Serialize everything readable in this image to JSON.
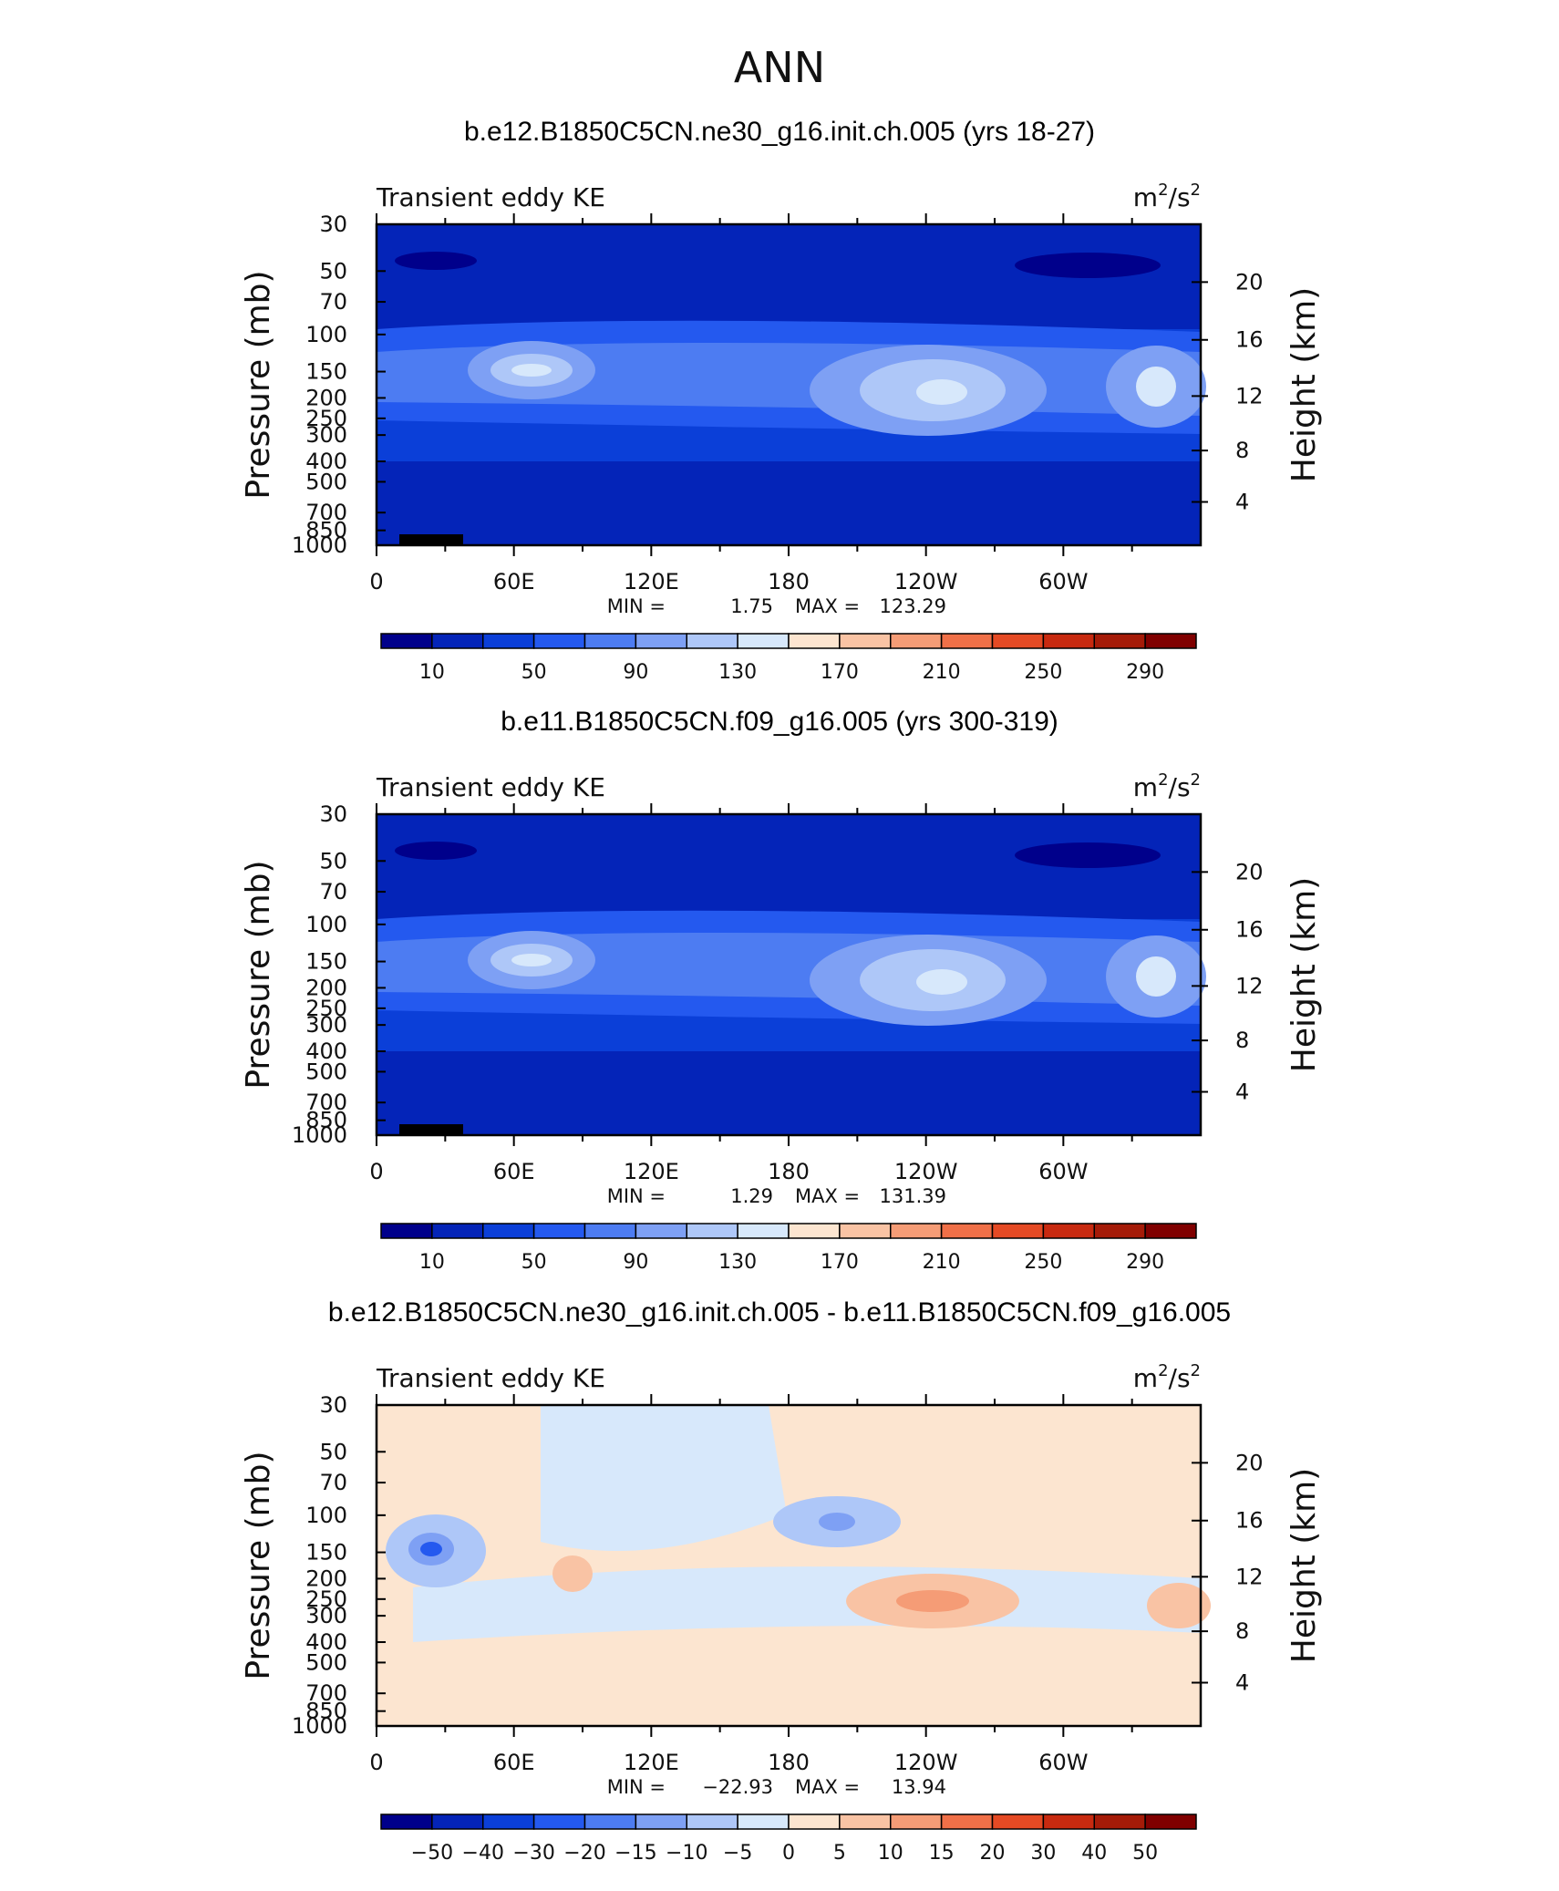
{
  "page_title": "ANN",
  "panels": [
    {
      "title": "b.e12.B1850C5CN.ne30_g16.init.ch.005 (yrs 18-27)",
      "left_label": "Transient eddy KE",
      "units_base": "m",
      "units_mid": "/s",
      "units_exp": "2",
      "min_label": "MIN =",
      "min_value": "1.75",
      "max_label": "MAX =",
      "max_value": "123.29"
    },
    {
      "title": "b.e11.B1850C5CN.f09_g16.005 (yrs 300-319)",
      "left_label": "Transient eddy KE",
      "units_base": "m",
      "units_mid": "/s",
      "units_exp": "2",
      "min_label": "MIN =",
      "min_value": "1.29",
      "max_label": "MAX =",
      "max_value": "131.39"
    },
    {
      "title": "b.e12.B1850C5CN.ne30_g16.init.ch.005 - b.e11.B1850C5CN.f09_g16.005",
      "left_label": "Transient eddy KE",
      "units_base": "m",
      "units_mid": "/s",
      "units_exp": "2",
      "min_label": "MIN =",
      "min_value": "−22.93",
      "max_label": "MAX =",
      "max_value": "13.94"
    }
  ],
  "chart_data": [
    {
      "type": "heatmap",
      "title": "b.e12.B1850C5CN.ne30_g16.init.ch.005 (yrs 18-27)",
      "variable": "Transient eddy KE",
      "units": "m2/s2",
      "xlabel": "",
      "ylabel": "Pressure (mb)",
      "y2label": "Height (km)",
      "x_ticks": [
        "0",
        "60E",
        "120E",
        "180",
        "120W",
        "60W"
      ],
      "x_tick_values": [
        0,
        60,
        120,
        180,
        240,
        300
      ],
      "xlim": [
        0,
        360
      ],
      "y_ticks": [
        "30",
        "50",
        "70",
        "100",
        "150",
        "200",
        "250",
        "300",
        "400",
        "500",
        "700",
        "850",
        "1000"
      ],
      "y_tick_values": [
        30,
        50,
        70,
        100,
        150,
        200,
        250,
        300,
        400,
        500,
        700,
        850,
        1000
      ],
      "ylim": [
        1000,
        30
      ],
      "y2_ticks": [
        "4",
        "8",
        "12",
        "16",
        "20"
      ],
      "min": 1.75,
      "max": 123.29,
      "colorbar": {
        "labels": [
          "10",
          "50",
          "90",
          "130",
          "170",
          "210",
          "250",
          "290"
        ],
        "levels": [
          0,
          10,
          30,
          50,
          70,
          90,
          110,
          130,
          150,
          170,
          190,
          210,
          230,
          250,
          270,
          290
        ],
        "colors": [
          "#00008b",
          "#0424b8",
          "#0b3fd8",
          "#2459ef",
          "#4d7cf2",
          "#7ea0f4",
          "#aec7f8",
          "#d7e8fb",
          "#fce5d0",
          "#f9c3a4",
          "#f59c76",
          "#f07048",
          "#e54a24",
          "#c82a10",
          "#a51b08",
          "#800000"
        ]
      }
    },
    {
      "type": "heatmap",
      "title": "b.e11.B1850C5CN.f09_g16.005 (yrs 300-319)",
      "variable": "Transient eddy KE",
      "units": "m2/s2",
      "xlabel": "",
      "ylabel": "Pressure (mb)",
      "y2label": "Height (km)",
      "x_ticks": [
        "0",
        "60E",
        "120E",
        "180",
        "120W",
        "60W"
      ],
      "x_tick_values": [
        0,
        60,
        120,
        180,
        240,
        300
      ],
      "xlim": [
        0,
        360
      ],
      "y_ticks": [
        "30",
        "50",
        "70",
        "100",
        "150",
        "200",
        "250",
        "300",
        "400",
        "500",
        "700",
        "850",
        "1000"
      ],
      "y_tick_values": [
        30,
        50,
        70,
        100,
        150,
        200,
        250,
        300,
        400,
        500,
        700,
        850,
        1000
      ],
      "ylim": [
        1000,
        30
      ],
      "y2_ticks": [
        "4",
        "8",
        "12",
        "16",
        "20"
      ],
      "min": 1.29,
      "max": 131.39,
      "colorbar": {
        "labels": [
          "10",
          "50",
          "90",
          "130",
          "170",
          "210",
          "250",
          "290"
        ],
        "levels": [
          0,
          10,
          30,
          50,
          70,
          90,
          110,
          130,
          150,
          170,
          190,
          210,
          230,
          250,
          270,
          290
        ],
        "colors": [
          "#00008b",
          "#0424b8",
          "#0b3fd8",
          "#2459ef",
          "#4d7cf2",
          "#7ea0f4",
          "#aec7f8",
          "#d7e8fb",
          "#fce5d0",
          "#f9c3a4",
          "#f59c76",
          "#f07048",
          "#e54a24",
          "#c82a10",
          "#a51b08",
          "#800000"
        ]
      }
    },
    {
      "type": "heatmap",
      "title": "b.e12.B1850C5CN.ne30_g16.init.ch.005 - b.e11.B1850C5CN.f09_g16.005",
      "variable": "Transient eddy KE",
      "units": "m2/s2",
      "xlabel": "",
      "ylabel": "Pressure (mb)",
      "y2label": "Height (km)",
      "x_ticks": [
        "0",
        "60E",
        "120E",
        "180",
        "120W",
        "60W"
      ],
      "x_tick_values": [
        0,
        60,
        120,
        180,
        240,
        300
      ],
      "xlim": [
        0,
        360
      ],
      "y_ticks": [
        "30",
        "50",
        "70",
        "100",
        "150",
        "200",
        "250",
        "300",
        "400",
        "500",
        "700",
        "850",
        "1000"
      ],
      "y_tick_values": [
        30,
        50,
        70,
        100,
        150,
        200,
        250,
        300,
        400,
        500,
        700,
        850,
        1000
      ],
      "ylim": [
        1000,
        30
      ],
      "y2_ticks": [
        "4",
        "8",
        "12",
        "16",
        "20"
      ],
      "min": -22.93,
      "max": 13.94,
      "colorbar": {
        "labels": [
          "−50",
          "−40",
          "−30",
          "−20",
          "−15",
          "−10",
          "−5",
          "0",
          "5",
          "10",
          "15",
          "20",
          "30",
          "40",
          "50"
        ],
        "levels": [
          -50,
          -40,
          -30,
          -20,
          -15,
          -10,
          -5,
          0,
          5,
          10,
          15,
          20,
          30,
          40,
          50
        ],
        "colors": [
          "#00008b",
          "#0424b8",
          "#0b3fd8",
          "#2459ef",
          "#4d7cf2",
          "#7ea0f4",
          "#aec7f8",
          "#d7e8fb",
          "#fce5d0",
          "#f9c3a4",
          "#f59c76",
          "#f07048",
          "#e54a24",
          "#c82a10",
          "#a51b08",
          "#800000"
        ]
      }
    }
  ],
  "y_title": "Pressure (mb)",
  "y2_title": "Height (km)"
}
